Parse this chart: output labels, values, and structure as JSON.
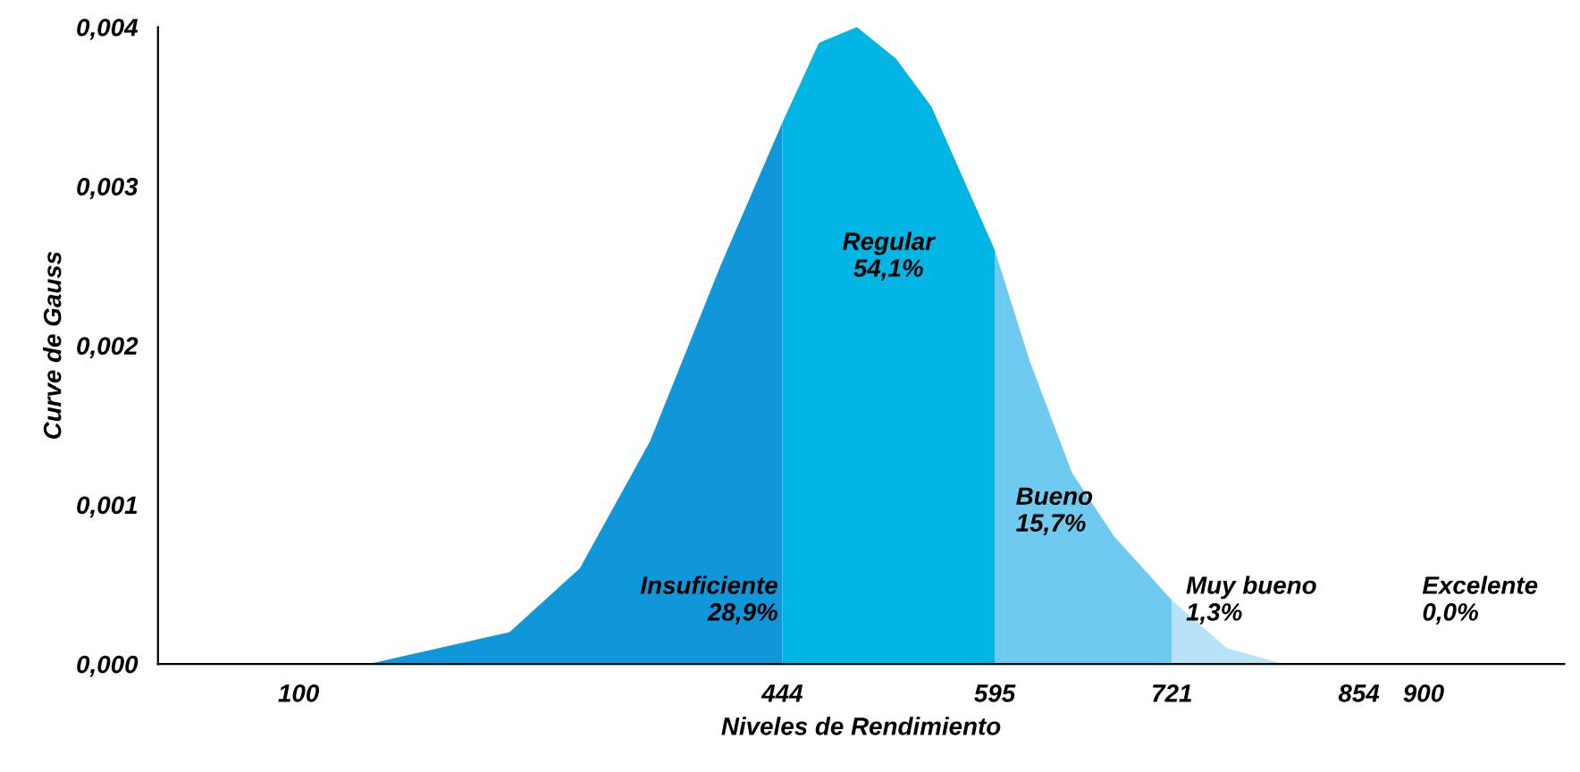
{
  "chart_data": {
    "type": "area",
    "xlabel": "Niveles de Rendimiento",
    "ylabel": "Curve de Gauss",
    "xlim": [
      0,
      1000
    ],
    "ylim": [
      0,
      0.004
    ],
    "xticks": [
      100,
      444,
      595,
      721,
      854,
      900
    ],
    "yticks": [
      {
        "value": 0,
        "label": "0,000"
      },
      {
        "value": 0.001,
        "label": "0,001"
      },
      {
        "value": 0.002,
        "label": "0,002"
      },
      {
        "value": 0.003,
        "label": "0,003"
      },
      {
        "value": 0.004,
        "label": "0,004"
      }
    ],
    "grid": false,
    "legend": false,
    "series": [
      {
        "color": "#0f97d9",
        "x": [
          150,
          200,
          250,
          300,
          350,
          400,
          444
        ],
        "values": [
          0,
          0.0001,
          0.0002,
          0.0006,
          0.0014,
          0.0025,
          0.0034
        ]
      },
      {
        "color": "#00b4e4",
        "x": [
          444,
          470,
          497,
          525,
          550,
          595
        ],
        "values": [
          0.0034,
          0.0039,
          0.004,
          0.0038,
          0.0035,
          0.0026
        ]
      },
      {
        "color": "#6ecaef",
        "x": [
          595,
          620,
          650,
          680,
          721
        ],
        "values": [
          0.0026,
          0.0019,
          0.0012,
          0.0008,
          0.0004
        ]
      },
      {
        "color": "#b8e3f7",
        "x": [
          721,
          760,
          800,
          854
        ],
        "values": [
          0.0004,
          0.0001,
          0,
          0
        ]
      }
    ],
    "annotations": [
      "Insuficiente\n28,9%",
      "Regular\n54,1%",
      "Bueno\n15,7%",
      "Muy bueno\n1,3%",
      "Excelente\n0,0%"
    ]
  }
}
